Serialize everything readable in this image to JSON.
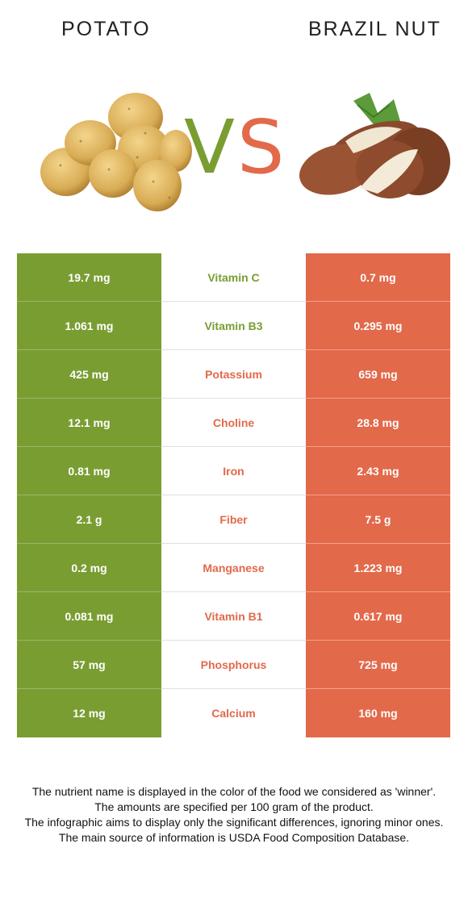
{
  "header": {
    "left_food": "POTATO",
    "right_food": "BRAZIL NUT",
    "vs_v": "V",
    "vs_s": "S"
  },
  "colors": {
    "left": "#7a9d32",
    "right": "#e2694a",
    "left_hex_name": "potato-green",
    "right_hex_name": "brazil-nut-orange"
  },
  "rows": [
    {
      "left": "19.7 mg",
      "nutrient": "Vitamin C",
      "right": "0.7 mg",
      "winner": "left"
    },
    {
      "left": "1.061 mg",
      "nutrient": "Vitamin B3",
      "right": "0.295 mg",
      "winner": "left"
    },
    {
      "left": "425 mg",
      "nutrient": "Potassium",
      "right": "659 mg",
      "winner": "right"
    },
    {
      "left": "12.1 mg",
      "nutrient": "Choline",
      "right": "28.8 mg",
      "winner": "right"
    },
    {
      "left": "0.81 mg",
      "nutrient": "Iron",
      "right": "2.43 mg",
      "winner": "right"
    },
    {
      "left": "2.1 g",
      "nutrient": "Fiber",
      "right": "7.5 g",
      "winner": "right"
    },
    {
      "left": "0.2 mg",
      "nutrient": "Manganese",
      "right": "1.223 mg",
      "winner": "right"
    },
    {
      "left": "0.081 mg",
      "nutrient": "Vitamin B1",
      "right": "0.617 mg",
      "winner": "right"
    },
    {
      "left": "57 mg",
      "nutrient": "Phosphorus",
      "right": "725 mg",
      "winner": "right"
    },
    {
      "left": "12 mg",
      "nutrient": "Calcium",
      "right": "160 mg",
      "winner": "right"
    }
  ],
  "footnote": [
    "The nutrient name is displayed in the color of the food we considered as 'winner'.",
    "The amounts are specified per 100 gram of the product.",
    "The infographic aims to display only the significant differences, ignoring minor ones.",
    "The main source of information is USDA Food Composition Database."
  ]
}
